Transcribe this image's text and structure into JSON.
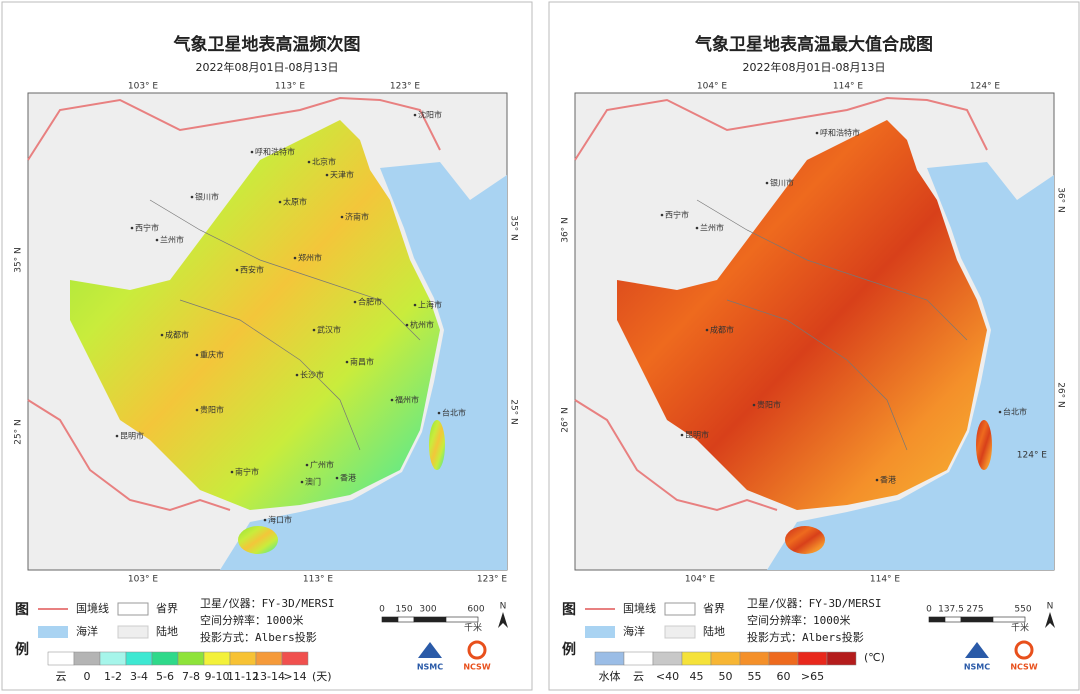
{
  "panels": [
    {
      "title": "气象卫星地表高温频次图",
      "subtitle": "2022年08月01日-08月13日",
      "lon_top": [
        "103° E",
        "113° E",
        "123° E"
      ],
      "lon_bottom": [
        "103° E",
        "113° E",
        "123° E"
      ],
      "lat_left": [
        "35° N",
        "25° N"
      ],
      "lat_right": [
        "35° N",
        "25° N"
      ],
      "cities": [
        "呼和浩特市",
        "北京市",
        "天津市",
        "沈阳市",
        "银川市",
        "太原市",
        "济南市",
        "西宁市",
        "兰州市",
        "郑州市",
        "西安市",
        "合肥市",
        "上海市",
        "成都市",
        "武汉市",
        "杭州市",
        "重庆市",
        "长沙市",
        "南昌市",
        "贵阳市",
        "福州市",
        "台北市",
        "昆明市",
        "南宁市",
        "广州市",
        "澳门",
        "香港",
        "海口市"
      ],
      "legend": {
        "heading": [
          "图",
          "例"
        ],
        "items": [
          "国境线",
          "省界",
          "海洋",
          "陆地"
        ],
        "info": [
          "卫星/仪器：FY-3D/MERSI",
          "空间分辨率：1000米",
          "投影方式：Albers投影"
        ],
        "scale": [
          "0",
          "150",
          "300",
          "600"
        ],
        "scale_unit": "千米",
        "north": "N",
        "logos": [
          "NSMC",
          "NCSW"
        ],
        "colors": [
          "#ffffff",
          "#b4b4b4",
          "#a6f5ea",
          "#3ee8d2",
          "#2fd98a",
          "#8ee33a",
          "#f3f13a",
          "#f7c234",
          "#f59a3a",
          "#f0504e"
        ],
        "labels": [
          "云",
          "0",
          "1-2",
          "3-4",
          "5-6",
          "7-8",
          "9-10",
          "11-12",
          "13-14",
          ">14"
        ],
        "unit": "(天)"
      }
    },
    {
      "title": "气象卫星地表高温最大值合成图",
      "subtitle": "2022年08月01日-08月13日",
      "lon_top": [
        "104° E",
        "114° E",
        "124° E"
      ],
      "lon_bottom": [
        "104° E",
        "114° E"
      ],
      "lat_left": [
        "36° N",
        "26° N"
      ],
      "lat_right": [
        "36° N",
        "26° N",
        "124° E"
      ],
      "cities": [
        "呼和浩特市",
        "银川市",
        "西宁市",
        "兰州市",
        "成都市",
        "贵阳市",
        "昆明市",
        "台北市",
        "香港"
      ],
      "legend": {
        "heading": [
          "图",
          "例"
        ],
        "items": [
          "国境线",
          "省界",
          "海洋",
          "陆地"
        ],
        "info": [
          "卫星/仪器：FY-3D/MERSI",
          "空间分辨率：1000米",
          "投影方式：Albers投影"
        ],
        "scale": [
          "0",
          "137.5",
          "275",
          "550"
        ],
        "scale_unit": "千米",
        "north": "N",
        "logos": [
          "NSMC",
          "NCSW"
        ],
        "colors": [
          "#9bbde6",
          "#ffffff",
          "#c8c8c8",
          "#f5e23a",
          "#f7b634",
          "#f4902a",
          "#ee6a1e",
          "#e8281c",
          "#b41c1c"
        ],
        "labels": [
          "水体",
          "云",
          "<40",
          "45",
          "50",
          "55",
          "60",
          ">65"
        ],
        "unit": "(℃)"
      }
    }
  ]
}
